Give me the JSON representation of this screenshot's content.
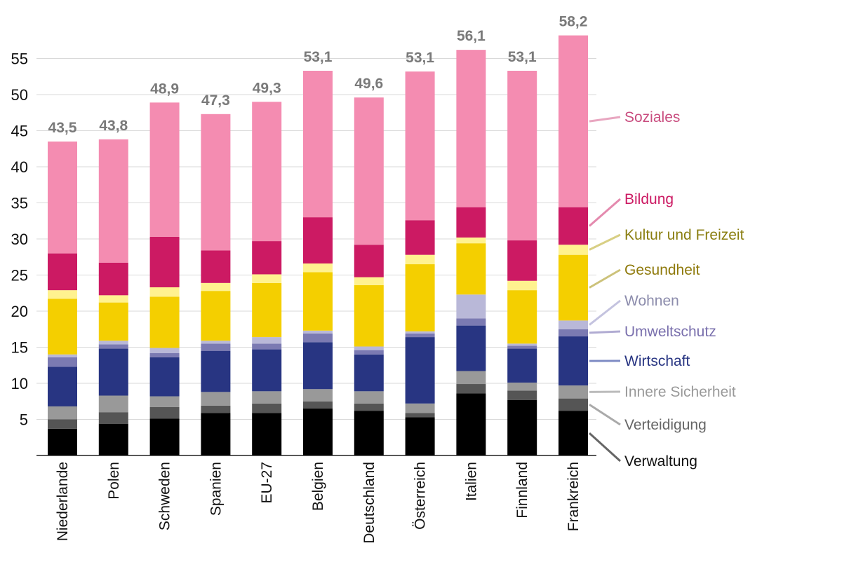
{
  "chart_data": {
    "type": "bar",
    "stacked": true,
    "title": "",
    "xlabel": "",
    "ylabel": "",
    "ylim": [
      0,
      58
    ],
    "yticks": [
      5,
      10,
      15,
      20,
      25,
      30,
      35,
      40,
      45,
      50,
      55
    ],
    "grid": true,
    "legend_position": "right",
    "categories": [
      "Niederlande",
      "Polen",
      "Schweden",
      "Spanien",
      "EU-27",
      "Belgien",
      "Deutschland",
      "Österreich",
      "Italien",
      "Finnland",
      "Frankreich"
    ],
    "totals": [
      "43,5",
      "43,8",
      "48,9",
      "47,3",
      "49,3",
      "53,1",
      "49,6",
      "53,1",
      "56,1",
      "53,1",
      "58,2"
    ],
    "series": [
      {
        "name": "Verwaltung",
        "color": "#000000",
        "label_color": "#111111",
        "line_color": "#666666",
        "values": [
          3.7,
          4.4,
          5.1,
          5.9,
          5.9,
          6.5,
          6.2,
          5.3,
          8.6,
          7.7,
          6.2
        ]
      },
      {
        "name": "Verteidigung",
        "color": "#555555",
        "label_color": "#666666",
        "line_color": "#aaaaaa",
        "values": [
          1.3,
          1.6,
          1.6,
          1.0,
          1.3,
          1.0,
          1.0,
          0.6,
          1.3,
          1.3,
          1.7
        ]
      },
      {
        "name": "Innere Sicherheit",
        "color": "#999999",
        "label_color": "#999999",
        "line_color": "#bbbbbb",
        "values": [
          1.8,
          2.3,
          1.5,
          1.9,
          1.7,
          1.7,
          1.7,
          1.3,
          1.8,
          1.1,
          1.8
        ]
      },
      {
        "name": "Wirtschaft",
        "color": "#283582",
        "label_color": "#283582",
        "line_color": "#7f8cc4",
        "values": [
          5.5,
          6.5,
          5.4,
          5.7,
          5.8,
          6.5,
          5.1,
          9.2,
          6.3,
          4.7,
          6.8
        ]
      },
      {
        "name": "Umweltschutz",
        "color": "#7b7ab2",
        "label_color": "#7a70ad",
        "line_color": "#b0abd2",
        "values": [
          1.3,
          0.6,
          0.6,
          1.0,
          0.8,
          1.2,
          0.6,
          0.5,
          1.0,
          0.4,
          1.0
        ]
      },
      {
        "name": "Wohnen",
        "color": "#b9b8d8",
        "label_color": "#8c8cac",
        "line_color": "#c4c3df",
        "values": [
          0.4,
          0.5,
          0.7,
          0.4,
          0.9,
          0.4,
          0.5,
          0.3,
          3.3,
          0.3,
          1.2
        ]
      },
      {
        "name": "Gesundheit",
        "color": "#f4cf00",
        "label_color": "#8f7a0c",
        "line_color": "#ccc27a",
        "values": [
          7.7,
          5.3,
          7.1,
          6.9,
          7.5,
          8.1,
          8.5,
          9.3,
          7.1,
          7.4,
          9.1
        ]
      },
      {
        "name": "Kultur und Freizeit",
        "color": "#fff28f",
        "label_color": "#8a7e10",
        "line_color": "#d8cf84",
        "values": [
          1.2,
          1.0,
          1.3,
          1.1,
          1.2,
          1.2,
          1.1,
          1.3,
          0.8,
          1.3,
          1.4
        ]
      },
      {
        "name": "Bildung",
        "color": "#cc1a63",
        "label_color": "#cc1a63",
        "line_color": "#e48aae",
        "values": [
          5.1,
          4.5,
          7.0,
          4.5,
          4.6,
          6.4,
          4.5,
          4.8,
          4.2,
          5.6,
          5.2
        ]
      },
      {
        "name": "Soziales",
        "color": "#f48cb1",
        "label_color": "#c94d7f",
        "line_color": "#e8a6c0",
        "values": [
          15.5,
          17.1,
          18.6,
          18.9,
          19.3,
          20.3,
          20.4,
          20.6,
          21.8,
          23.5,
          23.8
        ]
      }
    ]
  }
}
